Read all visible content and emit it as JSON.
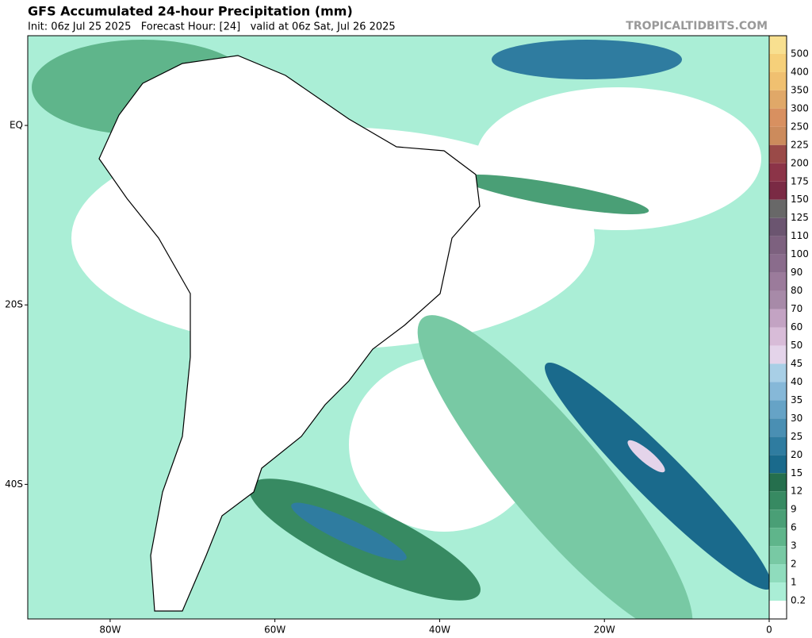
{
  "header": {
    "title": "GFS Accumulated 24-hour Precipitation (mm)",
    "subtitle": "Init: 06z Jul 25 2025   Forecast Hour: [24]   valid at 06z Sat, Jul 26 2025",
    "watermark": "TROPICALTIDBITS.COM"
  },
  "map": {
    "lon_ticks": [
      {
        "value": -80,
        "label": "80W"
      },
      {
        "value": -60,
        "label": "60W"
      },
      {
        "value": -40,
        "label": "40W"
      },
      {
        "value": -20,
        "label": "20W"
      },
      {
        "value": 0,
        "label": "0"
      }
    ],
    "lat_ticks": [
      {
        "value": 0,
        "label": "EQ"
      },
      {
        "value": -20,
        "label": "20S"
      },
      {
        "value": -40,
        "label": "40S"
      }
    ]
  },
  "colorbar": {
    "labels": [
      500,
      400,
      350,
      300,
      250,
      225,
      200,
      175,
      150,
      125,
      110,
      100,
      90,
      80,
      70,
      60,
      50,
      45,
      40,
      35,
      30,
      25,
      20,
      15,
      12,
      9,
      6,
      3,
      2,
      1,
      0.2
    ],
    "colors": [
      "#f8e090",
      "#f6d07a",
      "#f0c070",
      "#e0a868",
      "#d89060",
      "#cc8b5c",
      "#9a4a48",
      "#8c3448",
      "#7a2a44",
      "#686868",
      "#6b5570",
      "#7d617f",
      "#8a6c8c",
      "#9b7b9b",
      "#a78aa8",
      "#c3a3c3",
      "#d8bcd8",
      "#e4d4ea",
      "#a8cfe6",
      "#86b8d8",
      "#66a3c6",
      "#4a8fb3",
      "#2f7ca0",
      "#1a6a8c",
      "#256f4d",
      "#378a62",
      "#4a9f76",
      "#5fb58b",
      "#78c9a4",
      "#8fdcbd",
      "#aaeed6",
      "#ffffff"
    ]
  }
}
